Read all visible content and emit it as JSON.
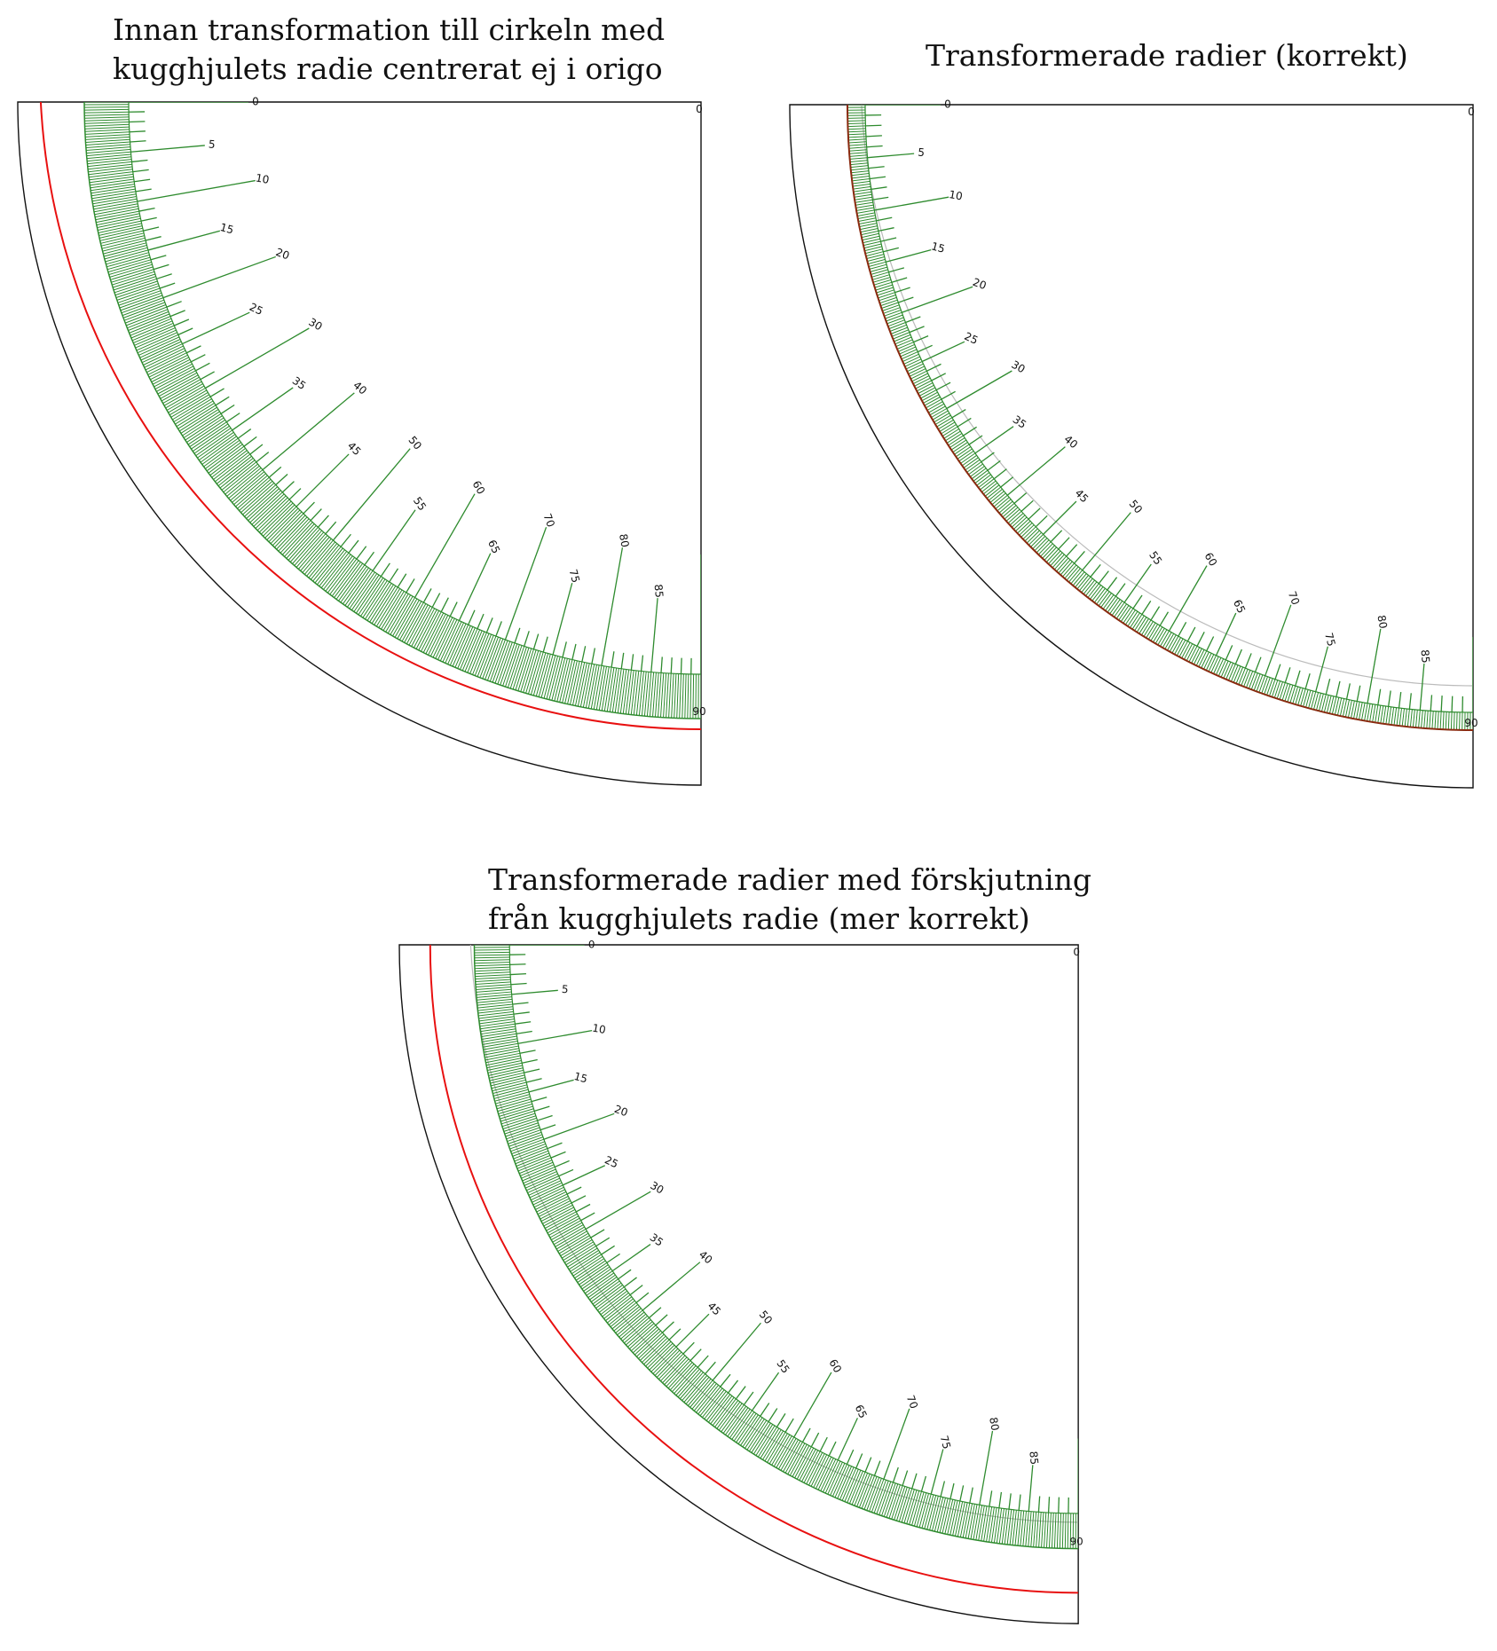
{
  "panels": [
    {
      "title_lines": [
        "Innan transformation till cirkeln med",
        "kugghjulets radie centrerat ej i origo"
      ],
      "corner_top_label": "0",
      "end_label": "90",
      "tick_labels": [
        "0",
        "5",
        "10",
        "15",
        "20",
        "25",
        "30",
        "35",
        "40",
        "45",
        "50",
        "55",
        "60",
        "65",
        "70",
        "75",
        "80",
        "85"
      ],
      "reference_circle": "red",
      "gray_circle": false
    },
    {
      "title_lines": [
        "Transformerade radier (korrekt)"
      ],
      "corner_top_label": "0",
      "end_label": "90",
      "tick_labels": [
        "0",
        "5",
        "10",
        "15",
        "20",
        "25",
        "30",
        "35",
        "40",
        "45",
        "50",
        "55",
        "60",
        "65",
        "70",
        "75",
        "80",
        "85"
      ],
      "reference_circle": "dark-red",
      "gray_circle": true
    },
    {
      "title_lines": [
        "Transformerade radier med förskjutning",
        "från kugghjulets radie (mer korrekt)"
      ],
      "corner_top_label": "0",
      "end_label": "90",
      "tick_labels": [
        "0",
        "5",
        "10",
        "15",
        "20",
        "25",
        "30",
        "35",
        "40",
        "45",
        "50",
        "55",
        "60",
        "65",
        "70",
        "75",
        "80",
        "85"
      ],
      "reference_circle": "red",
      "gray_circle": true
    }
  ],
  "colors": {
    "scale": "#2e8b2e",
    "red_circle": "#e81010",
    "dark_red_circle": "#8b2a10",
    "gray_circle": "#bbbbbb",
    "frame": "#111111"
  }
}
